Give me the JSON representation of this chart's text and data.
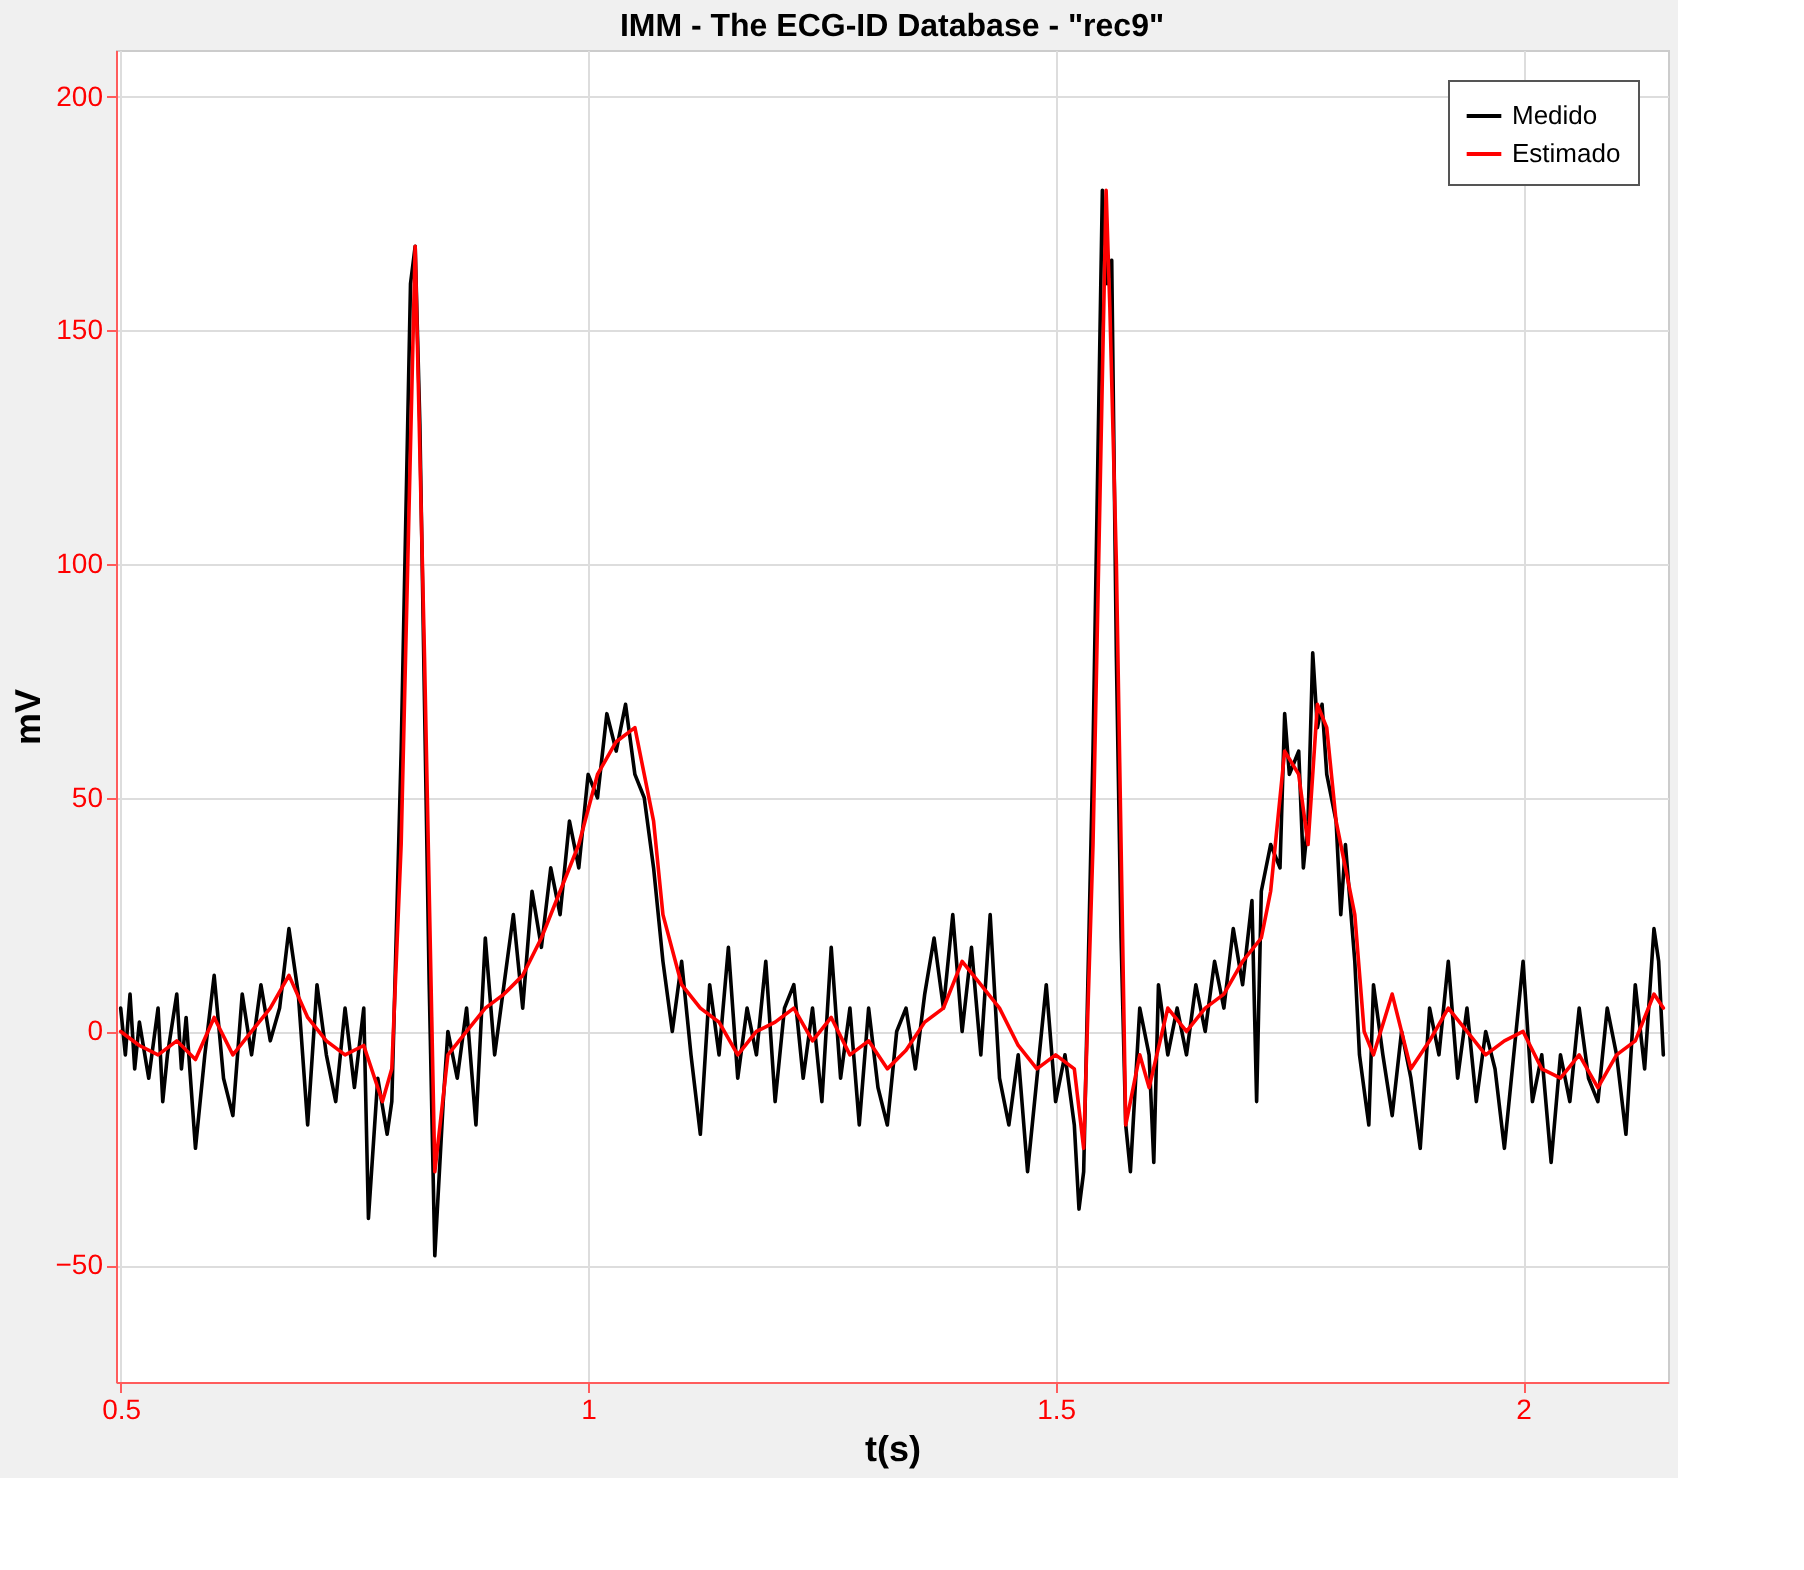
{
  "chart_data": {
    "type": "line",
    "title": "IMM - The ECG-ID Database - \"rec9\"",
    "xlabel": "t(s)",
    "ylabel": "mV",
    "xlim": [
      0.495,
      2.155
    ],
    "ylim": [
      -75,
      210
    ],
    "xticks": [
      0.5,
      1,
      1.5,
      2
    ],
    "yticks": [
      -50,
      0,
      50,
      100,
      150,
      200
    ],
    "grid": true,
    "legend": "top right",
    "line_style": "solid",
    "marker": "none",
    "series": [
      {
        "name": "Medido",
        "color": "#000000",
        "x": [
          0.5,
          0.505,
          0.51,
          0.515,
          0.52,
          0.53,
          0.54,
          0.545,
          0.55,
          0.56,
          0.565,
          0.57,
          0.58,
          0.59,
          0.6,
          0.61,
          0.62,
          0.63,
          0.64,
          0.65,
          0.66,
          0.67,
          0.68,
          0.69,
          0.7,
          0.71,
          0.72,
          0.73,
          0.74,
          0.75,
          0.76,
          0.765,
          0.775,
          0.785,
          0.79,
          0.8,
          0.81,
          0.815,
          0.82,
          0.83,
          0.836,
          0.845,
          0.85,
          0.86,
          0.87,
          0.88,
          0.89,
          0.9,
          0.91,
          0.92,
          0.93,
          0.94,
          0.95,
          0.96,
          0.97,
          0.98,
          0.99,
          1.0,
          1.01,
          1.02,
          1.03,
          1.04,
          1.05,
          1.06,
          1.07,
          1.08,
          1.09,
          1.1,
          1.11,
          1.12,
          1.13,
          1.14,
          1.15,
          1.16,
          1.17,
          1.18,
          1.19,
          1.2,
          1.21,
          1.22,
          1.23,
          1.24,
          1.25,
          1.26,
          1.27,
          1.28,
          1.29,
          1.3,
          1.31,
          1.32,
          1.33,
          1.34,
          1.35,
          1.36,
          1.37,
          1.38,
          1.39,
          1.4,
          1.41,
          1.42,
          1.43,
          1.44,
          1.45,
          1.46,
          1.47,
          1.48,
          1.49,
          1.5,
          1.51,
          1.52,
          1.525,
          1.53,
          1.54,
          1.55,
          1.555,
          1.56,
          1.565,
          1.57,
          1.575,
          1.58,
          1.59,
          1.6,
          1.605,
          1.61,
          1.62,
          1.63,
          1.64,
          1.65,
          1.66,
          1.67,
          1.68,
          1.69,
          1.7,
          1.71,
          1.715,
          1.72,
          1.73,
          1.74,
          1.745,
          1.75,
          1.76,
          1.765,
          1.77,
          1.775,
          1.78,
          1.785,
          1.79,
          1.8,
          1.805,
          1.81,
          1.82,
          1.825,
          1.835,
          1.84,
          1.85,
          1.86,
          1.87,
          1.88,
          1.89,
          1.9,
          1.91,
          1.92,
          1.93,
          1.94,
          1.95,
          1.96,
          1.97,
          1.98,
          1.99,
          2.0,
          2.01,
          2.02,
          2.03,
          2.04,
          2.05,
          2.06,
          2.07,
          2.08,
          2.09,
          2.1,
          2.11,
          2.12,
          2.13,
          2.14,
          2.145,
          2.15
        ],
        "values": [
          5,
          -5,
          8,
          -8,
          2,
          -10,
          5,
          -15,
          -5,
          8,
          -8,
          3,
          -25,
          -5,
          12,
          -10,
          -18,
          8,
          -5,
          10,
          -2,
          5,
          22,
          8,
          -20,
          10,
          -5,
          -15,
          5,
          -12,
          5,
          -40,
          -10,
          -22,
          -15,
          60,
          160,
          168,
          130,
          10,
          -48,
          -15,
          0,
          -10,
          5,
          -20,
          20,
          -5,
          10,
          25,
          5,
          30,
          18,
          35,
          25,
          45,
          35,
          55,
          50,
          68,
          60,
          70,
          55,
          50,
          35,
          15,
          0,
          15,
          -5,
          -22,
          10,
          -5,
          18,
          -10,
          5,
          -5,
          15,
          -15,
          5,
          10,
          -10,
          5,
          -15,
          18,
          -10,
          5,
          -20,
          5,
          -12,
          -20,
          0,
          5,
          -8,
          8,
          20,
          5,
          25,
          0,
          18,
          -5,
          25,
          -10,
          -20,
          -5,
          -30,
          -10,
          10,
          -15,
          -5,
          -20,
          -38,
          -30,
          60,
          180,
          160,
          165,
          80,
          20,
          -20,
          -30,
          5,
          -5,
          -28,
          10,
          -5,
          5,
          -5,
          10,
          0,
          15,
          5,
          22,
          10,
          28,
          -15,
          30,
          40,
          35,
          68,
          55,
          60,
          35,
          45,
          81,
          65,
          70,
          55,
          45,
          25,
          40,
          15,
          -5,
          -20,
          10,
          -5,
          -18,
          0,
          -10,
          -25,
          5,
          -5,
          15,
          -10,
          5,
          -15,
          0,
          -8,
          -25,
          -5,
          15,
          -15,
          -5,
          -28,
          -5,
          -15,
          5,
          -10,
          -15,
          5,
          -5,
          -22,
          10,
          -8,
          22,
          15,
          -5
        ]
      },
      {
        "name": "Estimado",
        "color": "#ff0000",
        "x": [
          0.5,
          0.52,
          0.54,
          0.56,
          0.58,
          0.6,
          0.62,
          0.64,
          0.66,
          0.68,
          0.7,
          0.72,
          0.74,
          0.76,
          0.78,
          0.79,
          0.8,
          0.815,
          0.825,
          0.836,
          0.85,
          0.87,
          0.89,
          0.91,
          0.93,
          0.95,
          0.97,
          0.99,
          1.01,
          1.03,
          1.05,
          1.06,
          1.07,
          1.08,
          1.1,
          1.12,
          1.14,
          1.16,
          1.18,
          1.2,
          1.22,
          1.24,
          1.26,
          1.28,
          1.3,
          1.32,
          1.34,
          1.36,
          1.38,
          1.4,
          1.42,
          1.44,
          1.46,
          1.48,
          1.5,
          1.52,
          1.53,
          1.54,
          1.554,
          1.558,
          1.565,
          1.575,
          1.59,
          1.6,
          1.62,
          1.64,
          1.66,
          1.68,
          1.7,
          1.72,
          1.73,
          1.745,
          1.76,
          1.77,
          1.78,
          1.79,
          1.8,
          1.81,
          1.82,
          1.83,
          1.84,
          1.86,
          1.88,
          1.9,
          1.92,
          1.94,
          1.96,
          1.98,
          2.0,
          2.02,
          2.04,
          2.06,
          2.08,
          2.1,
          2.12,
          2.14,
          2.15
        ],
        "values": [
          0,
          -3,
          -5,
          -2,
          -6,
          3,
          -5,
          0,
          5,
          12,
          3,
          -2,
          -5,
          -3,
          -15,
          -8,
          40,
          168,
          80,
          -30,
          -5,
          0,
          5,
          8,
          12,
          20,
          30,
          40,
          55,
          62,
          65,
          55,
          45,
          25,
          10,
          5,
          2,
          -5,
          0,
          2,
          5,
          -2,
          3,
          -5,
          -2,
          -8,
          -4,
          2,
          5,
          15,
          10,
          5,
          -3,
          -8,
          -5,
          -8,
          -25,
          40,
          180,
          155,
          100,
          -20,
          -5,
          -12,
          5,
          0,
          5,
          8,
          15,
          20,
          30,
          60,
          55,
          40,
          70,
          65,
          45,
          35,
          25,
          0,
          -5,
          8,
          -8,
          -2,
          5,
          0,
          -5,
          -2,
          0,
          -8,
          -10,
          -5,
          -12,
          -5,
          -2,
          8,
          5
        ]
      }
    ]
  }
}
